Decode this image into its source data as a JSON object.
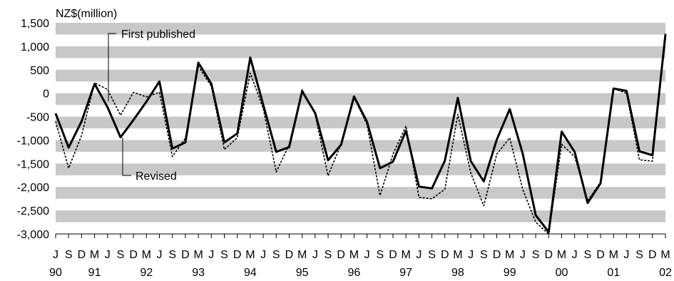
{
  "chart_data": {
    "type": "line",
    "ylabel": "NZ$(million)",
    "ylim": [
      -3000,
      1500
    ],
    "yticks": [
      1500,
      1000,
      500,
      0,
      -500,
      -1000,
      -1500,
      -2000,
      -2500,
      -3000
    ],
    "ytick_labels": [
      "1,500",
      "1,000",
      "500",
      "0",
      "-500",
      "-1,000",
      "-1,500",
      "-2,000",
      "-2,500",
      "-3,000"
    ],
    "banded_background": true,
    "band_color": "#c8c8c8",
    "quarter_labels": [
      "J",
      "S",
      "D",
      "M",
      "J",
      "S",
      "D",
      "M",
      "J",
      "S",
      "D",
      "M",
      "J",
      "S",
      "D",
      "M",
      "J",
      "S",
      "D",
      "M",
      "J",
      "S",
      "D",
      "M",
      "J",
      "S",
      "D",
      "M",
      "J",
      "S",
      "D",
      "M",
      "J",
      "S",
      "D",
      "M",
      "J",
      "S",
      "D",
      "M",
      "J",
      "S",
      "D",
      "M",
      "J",
      "S",
      "D",
      "M"
    ],
    "year_labels": [
      {
        "label": "90",
        "index": 0
      },
      {
        "label": "91",
        "index": 3
      },
      {
        "label": "92",
        "index": 7
      },
      {
        "label": "93",
        "index": 11
      },
      {
        "label": "94",
        "index": 15
      },
      {
        "label": "95",
        "index": 19
      },
      {
        "label": "96",
        "index": 23
      },
      {
        "label": "97",
        "index": 27
      },
      {
        "label": "98",
        "index": 31
      },
      {
        "label": "99",
        "index": 35
      },
      {
        "label": "00",
        "index": 39
      },
      {
        "label": "01",
        "index": 43
      },
      {
        "label": "02",
        "index": 47
      }
    ],
    "series": [
      {
        "name": "Revised",
        "style": "solid",
        "values": [
          -430,
          -1160,
          -600,
          200,
          -300,
          -940,
          -570,
          -180,
          250,
          -1180,
          -1050,
          650,
          200,
          -1050,
          -860,
          760,
          -250,
          -1250,
          -1150,
          40,
          -420,
          -1430,
          -1100,
          -70,
          -610,
          -1600,
          -1460,
          -800,
          -1990,
          -2030,
          -1440,
          -100,
          -1450,
          -1880,
          -990,
          -340,
          -1290,
          -2600,
          -2960,
          -820,
          -1250,
          -2340,
          -1920,
          100,
          50,
          -1240,
          -1320,
          1250
        ]
      },
      {
        "name": "First published",
        "style": "dashed",
        "values": [
          -600,
          -1600,
          -900,
          220,
          80,
          -470,
          20,
          -80,
          20,
          -1350,
          -960,
          570,
          150,
          -1200,
          -950,
          430,
          -330,
          -1680,
          -1100,
          80,
          -450,
          -1760,
          -1080,
          -90,
          -670,
          -2180,
          -1300,
          -700,
          -2220,
          -2250,
          -2050,
          -450,
          -1700,
          -2400,
          -1300,
          -950,
          -2050,
          -2750,
          -3000,
          -1090,
          -1350,
          -2290,
          -1900,
          100,
          0,
          -1420,
          -1450,
          1270
        ]
      }
    ],
    "annotations": [
      {
        "text": "First published",
        "series": "First published"
      },
      {
        "text": "Revised",
        "series": "Revised"
      }
    ]
  }
}
